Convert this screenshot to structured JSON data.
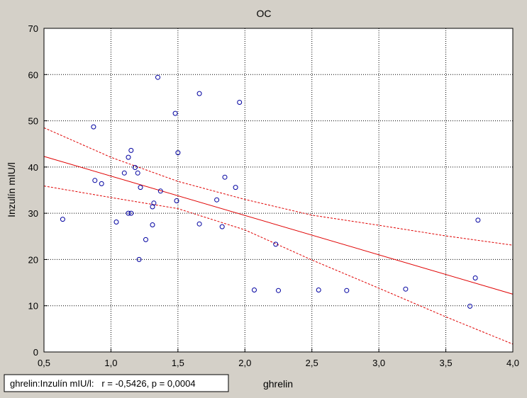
{
  "chart_data": {
    "type": "scatter",
    "title": "OC",
    "xlabel": "ghrelin",
    "ylabel": "Inzulín mIU/l",
    "xlim": [
      0.5,
      4.0
    ],
    "ylim": [
      0,
      70
    ],
    "xticks": [
      0.5,
      1.0,
      1.5,
      2.0,
      2.5,
      3.0,
      3.5,
      4.0
    ],
    "xtick_labels": [
      "0,5",
      "1,0",
      "1,5",
      "2,0",
      "2,5",
      "3,0",
      "3,5",
      "4,0"
    ],
    "yticks": [
      0,
      10,
      20,
      30,
      40,
      50,
      60,
      70
    ],
    "ytick_labels": [
      "0",
      "10",
      "20",
      "30",
      "40",
      "50",
      "60",
      "70"
    ],
    "grid": true,
    "marker": "open-circle",
    "point_color": "#0000a0",
    "fit_color": "#e00000",
    "plot_background": "#ffffff",
    "frame_background": "#d4d0c8",
    "points": [
      {
        "x": 0.64,
        "y": 28.7
      },
      {
        "x": 0.87,
        "y": 48.7
      },
      {
        "x": 0.88,
        "y": 37.1
      },
      {
        "x": 0.93,
        "y": 36.4
      },
      {
        "x": 1.04,
        "y": 28.1
      },
      {
        "x": 1.1,
        "y": 38.7
      },
      {
        "x": 1.13,
        "y": 42.1
      },
      {
        "x": 1.13,
        "y": 30.0
      },
      {
        "x": 1.15,
        "y": 43.6
      },
      {
        "x": 1.15,
        "y": 30.0
      },
      {
        "x": 1.18,
        "y": 39.9
      },
      {
        "x": 1.2,
        "y": 38.7
      },
      {
        "x": 1.21,
        "y": 20.0
      },
      {
        "x": 1.22,
        "y": 35.6
      },
      {
        "x": 1.26,
        "y": 24.3
      },
      {
        "x": 1.31,
        "y": 27.5
      },
      {
        "x": 1.31,
        "y": 31.4
      },
      {
        "x": 1.32,
        "y": 32.2
      },
      {
        "x": 1.35,
        "y": 59.4
      },
      {
        "x": 1.37,
        "y": 34.8
      },
      {
        "x": 1.48,
        "y": 51.6
      },
      {
        "x": 1.49,
        "y": 32.7
      },
      {
        "x": 1.5,
        "y": 43.1
      },
      {
        "x": 1.66,
        "y": 55.9
      },
      {
        "x": 1.66,
        "y": 27.7
      },
      {
        "x": 1.79,
        "y": 32.9
      },
      {
        "x": 1.83,
        "y": 27.1
      },
      {
        "x": 1.85,
        "y": 37.8
      },
      {
        "x": 1.93,
        "y": 35.6
      },
      {
        "x": 1.96,
        "y": 54.0
      },
      {
        "x": 2.07,
        "y": 13.4
      },
      {
        "x": 2.23,
        "y": 23.3
      },
      {
        "x": 2.25,
        "y": 13.3
      },
      {
        "x": 2.55,
        "y": 13.4
      },
      {
        "x": 2.76,
        "y": 13.3
      },
      {
        "x": 3.2,
        "y": 13.6
      },
      {
        "x": 3.68,
        "y": 9.9
      },
      {
        "x": 3.72,
        "y": 16.0
      },
      {
        "x": 3.74,
        "y": 28.5
      }
    ],
    "fit_line": [
      {
        "x": 0.5,
        "y": 42.3
      },
      {
        "x": 4.0,
        "y": 12.5
      }
    ],
    "confidence_band": {
      "upper": [
        {
          "x": 0.5,
          "y": 48.5
        },
        {
          "x": 1.0,
          "y": 42.1
        },
        {
          "x": 1.5,
          "y": 36.9
        },
        {
          "x": 2.0,
          "y": 33.0
        },
        {
          "x": 2.5,
          "y": 29.6
        },
        {
          "x": 3.0,
          "y": 27.4
        },
        {
          "x": 3.5,
          "y": 25.1
        },
        {
          "x": 4.0,
          "y": 23.1
        }
      ],
      "lower": [
        {
          "x": 0.5,
          "y": 35.9
        },
        {
          "x": 1.0,
          "y": 33.4
        },
        {
          "x": 1.5,
          "y": 31.0
        },
        {
          "x": 2.0,
          "y": 26.4
        },
        {
          "x": 2.5,
          "y": 19.9
        },
        {
          "x": 3.0,
          "y": 13.8
        },
        {
          "x": 3.5,
          "y": 7.6
        },
        {
          "x": 4.0,
          "y": 1.7
        }
      ]
    },
    "stats_label": "ghrelin:Inzulín mIU/l:   r = -0,5426, p = 0,0004"
  }
}
